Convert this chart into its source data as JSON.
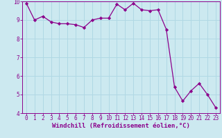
{
  "x": [
    0,
    1,
    2,
    3,
    4,
    5,
    6,
    7,
    8,
    9,
    10,
    11,
    12,
    13,
    14,
    15,
    16,
    17,
    18,
    19,
    20,
    21,
    22,
    23
  ],
  "y": [
    9.9,
    9.0,
    9.2,
    8.9,
    8.8,
    8.8,
    8.75,
    8.6,
    9.0,
    9.1,
    9.1,
    9.85,
    9.55,
    9.9,
    9.55,
    9.5,
    9.55,
    8.5,
    5.4,
    4.65,
    5.2,
    5.6,
    5.0,
    4.3
  ],
  "line_color": "#8b008b",
  "marker": "D",
  "marker_size": 2.2,
  "bg_color": "#cce9f0",
  "grid_color": "#b0d8e4",
  "xlabel": "Windchill (Refroidissement éolien,°C)",
  "xlim": [
    -0.5,
    23.5
  ],
  "ylim": [
    4,
    10
  ],
  "yticks": [
    4,
    5,
    6,
    7,
    8,
    9,
    10
  ],
  "xticks": [
    0,
    1,
    2,
    3,
    4,
    5,
    6,
    7,
    8,
    9,
    10,
    11,
    12,
    13,
    14,
    15,
    16,
    17,
    18,
    19,
    20,
    21,
    22,
    23
  ],
  "tick_color": "#8b008b",
  "label_color": "#8b008b",
  "tick_fontsize": 5.5,
  "xlabel_fontsize": 6.5,
  "spine_color": "#8b008b",
  "linewidth": 0.9
}
